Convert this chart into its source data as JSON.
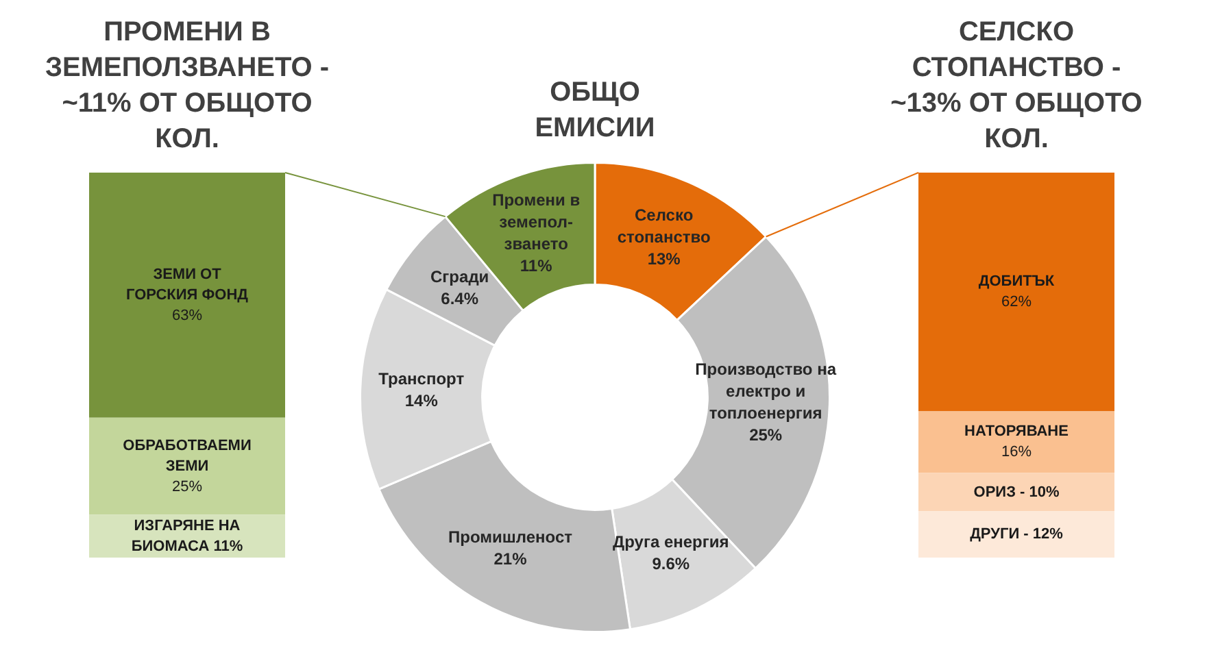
{
  "chart_data": [
    {
      "type": "bar",
      "stacked": true,
      "title": "ПРОМЕНИ В ЗЕМЕПОЛЗВАНЕТО - ~11% ОТ ОБЩОТО КОЛ.",
      "categories": [
        null
      ],
      "tick_labels": false,
      "series": [
        {
          "name": "ИЗГАРЯНЕ НА БИОМАСА",
          "color": "#d7e4bd",
          "values": [
            11
          ],
          "value_labels": [
            "11%"
          ]
        },
        {
          "name": "ОБРАБОТВАЕМИ ЗЕМИ",
          "color": "#c3d69b",
          "values": [
            25
          ],
          "value_labels": [
            "25%"
          ]
        },
        {
          "name": "ЗЕМИ ОТ ГОРСКИЯ ФОНД",
          "color": "#77933c",
          "values": [
            63
          ],
          "value_labels": [
            "63%"
          ]
        }
      ]
    },
    {
      "type": "donut",
      "title": "ОБЩО ЕМИСИИ",
      "categories": [
        "Селско стопанство",
        "Производство на електро и топлоенергия",
        "Друга енергия",
        "Промишленост",
        "Транспорт",
        "Сгради",
        "Промени в земепол-зването"
      ],
      "values": [
        13,
        25,
        9.6,
        21,
        14,
        6.4,
        11
      ],
      "value_labels": [
        "13%",
        "25%",
        "9.6%",
        "21%",
        "14%",
        "6.4%",
        "11%"
      ],
      "colors": [
        "#e46c0a",
        "#bfbfbf",
        "#d9d9d9",
        "#bfbfbf",
        "#d9d9d9",
        "#bfbfbf",
        "#77933c"
      ]
    },
    {
      "type": "bar",
      "stacked": true,
      "title": "СЕЛСКО СТОПАНСТВО - ~13% ОТ ОБЩОТО КОЛ.",
      "categories": [
        null
      ],
      "tick_labels": false,
      "series": [
        {
          "name": "ДРУГИ -",
          "color": "#fde9d9",
          "values": [
            12
          ],
          "value_labels": [
            "12%"
          ]
        },
        {
          "name": "ОРИЗ -",
          "color": "#fcd5b5",
          "values": [
            10
          ],
          "value_labels": [
            "10%"
          ]
        },
        {
          "name": "НАТОРЯВАНЕ",
          "color": "#fac090",
          "values": [
            16
          ],
          "value_labels": [
            "16%"
          ]
        },
        {
          "name": "ДОБИТЪК",
          "color": "#e46c0a",
          "values": [
            62
          ],
          "value_labels": [
            "62%"
          ]
        }
      ]
    }
  ]
}
